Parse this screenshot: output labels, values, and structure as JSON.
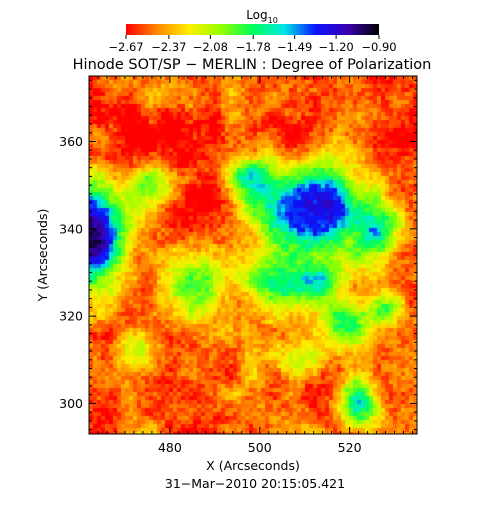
{
  "chart_data": {
    "type": "heatmap",
    "title": "Hinode SOT/SP − MERLIN : Degree of Polarization",
    "xlabel": "X (Arcseconds)",
    "ylabel": "Y (Arcseconds)",
    "footer": "31−Mar−2010 20:15:05.421",
    "xlim": [
      462,
      535
    ],
    "ylim": [
      293,
      375
    ],
    "xticks": [
      480,
      500,
      520
    ],
    "xtick_labels": [
      "480",
      "500",
      "520"
    ],
    "yticks": [
      300,
      320,
      340,
      360
    ],
    "ytick_labels": [
      "300",
      "320",
      "340",
      "360"
    ],
    "colorbar": {
      "label_main": "Log",
      "label_sub": "10",
      "ticks": [
        -2.67,
        -2.37,
        -2.08,
        -1.78,
        -1.49,
        -1.2,
        -0.9
      ],
      "tick_labels": [
        "−2.67",
        "−2.37",
        "−2.08",
        "−1.78",
        "−1.49",
        "−1.20",
        "−0.90"
      ],
      "range": [
        -2.67,
        -0.9
      ],
      "colors": [
        "#ff0000",
        "#ff8a00",
        "#ffee00",
        "#96ff00",
        "#00ff5a",
        "#00e6e6",
        "#0a14ff",
        "#3a00b0",
        "#000000"
      ]
    },
    "features": [
      {
        "x": 463,
        "y": 338,
        "strength": 1.7,
        "spread_x": 7,
        "spread_y": 11
      },
      {
        "x": 505,
        "y": 343,
        "strength": 0.95,
        "spread_x": 9,
        "spread_y": 11
      },
      {
        "x": 515,
        "y": 345,
        "strength": 1.05,
        "spread_x": 7,
        "spread_y": 10
      },
      {
        "x": 498,
        "y": 352,
        "strength": 0.7,
        "spread_x": 5,
        "spread_y": 5
      },
      {
        "x": 526,
        "y": 340,
        "strength": 0.8,
        "spread_x": 5,
        "spread_y": 7
      },
      {
        "x": 485,
        "y": 328,
        "strength": 0.85,
        "spread_x": 7,
        "spread_y": 8
      },
      {
        "x": 503,
        "y": 328,
        "strength": 0.8,
        "spread_x": 7,
        "spread_y": 5
      },
      {
        "x": 513,
        "y": 327,
        "strength": 0.75,
        "spread_x": 5,
        "spread_y": 5
      },
      {
        "x": 520,
        "y": 318,
        "strength": 0.85,
        "spread_x": 5,
        "spread_y": 6
      },
      {
        "x": 528,
        "y": 322,
        "strength": 0.65,
        "spread_x": 4,
        "spread_y": 4
      },
      {
        "x": 522,
        "y": 300,
        "strength": 1.05,
        "spread_x": 4,
        "spread_y": 6
      },
      {
        "x": 510,
        "y": 310,
        "strength": 0.55,
        "spread_x": 6,
        "spread_y": 5
      },
      {
        "x": 476,
        "y": 350,
        "strength": 0.6,
        "spread_x": 5,
        "spread_y": 5
      },
      {
        "x": 472,
        "y": 312,
        "strength": 0.55,
        "spread_x": 4,
        "spread_y": 5
      }
    ]
  }
}
